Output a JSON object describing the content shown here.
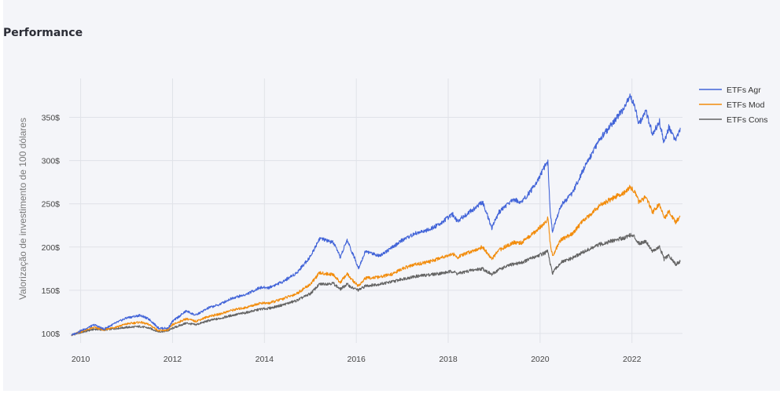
{
  "header": {
    "title": "Performance"
  },
  "chart_data": {
    "type": "line",
    "title": "Performance",
    "xlabel": "",
    "ylabel": "Valorização de investimento de 100 dólares",
    "x_ticks": [
      2010,
      2012,
      2014,
      2016,
      2018,
      2020,
      2022
    ],
    "x_tick_labels": [
      "2010",
      "2012",
      "2014",
      "2016",
      "2018",
      "2020",
      "2022"
    ],
    "xlim": [
      2009.75,
      2023.1
    ],
    "y_ticks": [
      100,
      150,
      200,
      250,
      300,
      350
    ],
    "y_tick_labels": [
      "100$",
      "150$",
      "200$",
      "250$",
      "300$",
      "350$"
    ],
    "ylim": [
      89,
      395
    ],
    "grid": true,
    "legend_position": "top-right",
    "series": [
      {
        "name": "ETFs Agr",
        "color": "#4264d8",
        "points": [
          [
            2009.8,
            98
          ],
          [
            2010.0,
            103
          ],
          [
            2010.3,
            110
          ],
          [
            2010.5,
            105
          ],
          [
            2010.8,
            113
          ],
          [
            2011.0,
            118
          ],
          [
            2011.3,
            121
          ],
          [
            2011.5,
            116
          ],
          [
            2011.7,
            106
          ],
          [
            2011.9,
            106
          ],
          [
            2012.0,
            114
          ],
          [
            2012.3,
            126
          ],
          [
            2012.5,
            121
          ],
          [
            2012.8,
            130
          ],
          [
            2013.0,
            133
          ],
          [
            2013.3,
            141
          ],
          [
            2013.6,
            145
          ],
          [
            2013.9,
            153
          ],
          [
            2014.1,
            153
          ],
          [
            2014.4,
            160
          ],
          [
            2014.7,
            170
          ],
          [
            2015.0,
            189
          ],
          [
            2015.2,
            210
          ],
          [
            2015.5,
            205
          ],
          [
            2015.65,
            188
          ],
          [
            2015.8,
            208
          ],
          [
            2015.9,
            195
          ],
          [
            2016.05,
            176
          ],
          [
            2016.2,
            195
          ],
          [
            2016.5,
            190
          ],
          [
            2016.8,
            200
          ],
          [
            2017.0,
            208
          ],
          [
            2017.3,
            216
          ],
          [
            2017.6,
            220
          ],
          [
            2017.9,
            230
          ],
          [
            2018.1,
            238
          ],
          [
            2018.2,
            230
          ],
          [
            2018.5,
            242
          ],
          [
            2018.75,
            252
          ],
          [
            2018.95,
            222
          ],
          [
            2019.1,
            240
          ],
          [
            2019.4,
            255
          ],
          [
            2019.6,
            252
          ],
          [
            2019.9,
            272
          ],
          [
            2020.1,
            293
          ],
          [
            2020.17,
            298
          ],
          [
            2020.22,
            240
          ],
          [
            2020.27,
            218
          ],
          [
            2020.45,
            248
          ],
          [
            2020.7,
            262
          ],
          [
            2020.9,
            285
          ],
          [
            2021.1,
            305
          ],
          [
            2021.3,
            325
          ],
          [
            2021.5,
            338
          ],
          [
            2021.7,
            352
          ],
          [
            2021.85,
            362
          ],
          [
            2021.95,
            375
          ],
          [
            2022.05,
            365
          ],
          [
            2022.15,
            342
          ],
          [
            2022.3,
            358
          ],
          [
            2022.45,
            330
          ],
          [
            2022.6,
            345
          ],
          [
            2022.7,
            320
          ],
          [
            2022.8,
            338
          ],
          [
            2022.95,
            322
          ],
          [
            2023.05,
            338
          ]
        ]
      },
      {
        "name": "ETFs Mod",
        "color": "#f28c0c",
        "points": [
          [
            2009.8,
            98
          ],
          [
            2010.0,
            102
          ],
          [
            2010.3,
            107
          ],
          [
            2010.5,
            104
          ],
          [
            2010.8,
            108
          ],
          [
            2011.0,
            111
          ],
          [
            2011.3,
            113
          ],
          [
            2011.5,
            110
          ],
          [
            2011.7,
            103
          ],
          [
            2011.9,
            104
          ],
          [
            2012.0,
            110
          ],
          [
            2012.3,
            117
          ],
          [
            2012.5,
            114
          ],
          [
            2012.8,
            120
          ],
          [
            2013.0,
            122
          ],
          [
            2013.3,
            127
          ],
          [
            2013.6,
            130
          ],
          [
            2013.9,
            135
          ],
          [
            2014.1,
            135
          ],
          [
            2014.4,
            140
          ],
          [
            2014.7,
            146
          ],
          [
            2015.0,
            157
          ],
          [
            2015.2,
            170
          ],
          [
            2015.5,
            168
          ],
          [
            2015.65,
            159
          ],
          [
            2015.8,
            169
          ],
          [
            2015.9,
            162
          ],
          [
            2016.05,
            155
          ],
          [
            2016.2,
            164
          ],
          [
            2016.5,
            165
          ],
          [
            2016.8,
            169
          ],
          [
            2017.0,
            175
          ],
          [
            2017.3,
            180
          ],
          [
            2017.6,
            183
          ],
          [
            2017.9,
            189
          ],
          [
            2018.1,
            192
          ],
          [
            2018.2,
            188
          ],
          [
            2018.5,
            195
          ],
          [
            2018.75,
            200
          ],
          [
            2018.95,
            186
          ],
          [
            2019.1,
            196
          ],
          [
            2019.4,
            205
          ],
          [
            2019.6,
            205
          ],
          [
            2019.9,
            218
          ],
          [
            2020.1,
            228
          ],
          [
            2020.17,
            233
          ],
          [
            2020.22,
            205
          ],
          [
            2020.27,
            190
          ],
          [
            2020.45,
            208
          ],
          [
            2020.7,
            215
          ],
          [
            2020.9,
            228
          ],
          [
            2021.1,
            238
          ],
          [
            2021.3,
            248
          ],
          [
            2021.5,
            254
          ],
          [
            2021.7,
            260
          ],
          [
            2021.85,
            263
          ],
          [
            2021.95,
            270
          ],
          [
            2022.05,
            265
          ],
          [
            2022.15,
            252
          ],
          [
            2022.3,
            258
          ],
          [
            2022.45,
            240
          ],
          [
            2022.6,
            250
          ],
          [
            2022.7,
            232
          ],
          [
            2022.8,
            242
          ],
          [
            2022.95,
            228
          ],
          [
            2023.05,
            236
          ]
        ]
      },
      {
        "name": "ETFs Cons",
        "color": "#636363",
        "points": [
          [
            2009.8,
            98
          ],
          [
            2010.0,
            101
          ],
          [
            2010.3,
            105
          ],
          [
            2010.5,
            104
          ],
          [
            2010.8,
            106
          ],
          [
            2011.0,
            107
          ],
          [
            2011.3,
            108
          ],
          [
            2011.5,
            106
          ],
          [
            2011.7,
            102
          ],
          [
            2011.9,
            103
          ],
          [
            2012.0,
            106
          ],
          [
            2012.3,
            112
          ],
          [
            2012.5,
            110
          ],
          [
            2012.8,
            115
          ],
          [
            2013.0,
            117
          ],
          [
            2013.3,
            121
          ],
          [
            2013.6,
            124
          ],
          [
            2013.9,
            128
          ],
          [
            2014.1,
            129
          ],
          [
            2014.4,
            133
          ],
          [
            2014.7,
            138
          ],
          [
            2015.0,
            146
          ],
          [
            2015.2,
            157
          ],
          [
            2015.5,
            158
          ],
          [
            2015.65,
            151
          ],
          [
            2015.8,
            157
          ],
          [
            2015.9,
            153
          ],
          [
            2016.05,
            150
          ],
          [
            2016.2,
            155
          ],
          [
            2016.5,
            157
          ],
          [
            2016.8,
            160
          ],
          [
            2017.0,
            163
          ],
          [
            2017.3,
            166
          ],
          [
            2017.6,
            168
          ],
          [
            2017.9,
            170
          ],
          [
            2018.1,
            172
          ],
          [
            2018.2,
            169
          ],
          [
            2018.5,
            173
          ],
          [
            2018.75,
            175
          ],
          [
            2018.95,
            168
          ],
          [
            2019.1,
            174
          ],
          [
            2019.4,
            180
          ],
          [
            2019.6,
            182
          ],
          [
            2019.9,
            189
          ],
          [
            2020.1,
            193
          ],
          [
            2020.17,
            195
          ],
          [
            2020.22,
            180
          ],
          [
            2020.27,
            170
          ],
          [
            2020.45,
            182
          ],
          [
            2020.7,
            187
          ],
          [
            2020.9,
            193
          ],
          [
            2021.1,
            198
          ],
          [
            2021.3,
            203
          ],
          [
            2021.5,
            206
          ],
          [
            2021.7,
            209
          ],
          [
            2021.85,
            211
          ],
          [
            2021.95,
            214
          ],
          [
            2022.05,
            212
          ],
          [
            2022.15,
            204
          ],
          [
            2022.3,
            207
          ],
          [
            2022.45,
            195
          ],
          [
            2022.6,
            200
          ],
          [
            2022.7,
            186
          ],
          [
            2022.8,
            190
          ],
          [
            2022.95,
            180
          ],
          [
            2023.05,
            183
          ]
        ]
      }
    ]
  }
}
